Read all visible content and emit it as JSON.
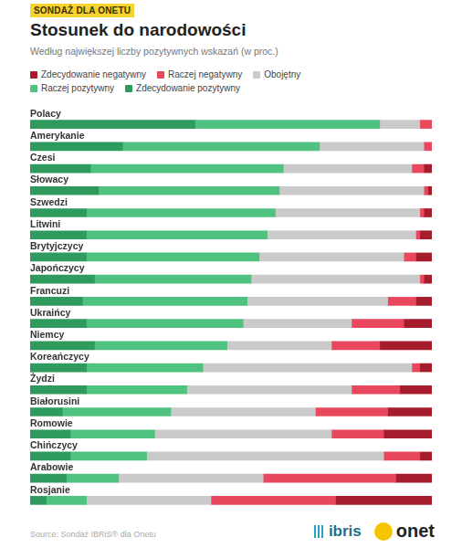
{
  "badge": "SONDAŻ DLA ONETU",
  "source": "Source: Sondaż IBRiS® dla Onetu",
  "logos": [
    "ibris",
    "onet"
  ],
  "chart_data": {
    "type": "bar",
    "title": "Stosunek do narodowości",
    "subtitle": "Według największej liczby pozytywnych wskazań (w proc.)",
    "orientation": "horizontal",
    "stacked": true,
    "grid": false,
    "legend": "top-left",
    "tick_labels": false,
    "data_labels": false,
    "xlim": [
      0,
      100
    ],
    "categories": [
      "Polacy",
      "Amerykanie",
      "Czesi",
      "Słowacy",
      "Szwedzi",
      "Litwini",
      "Brytyjczycy",
      "Japończycy",
      "Francuzi",
      "Ukraińcy",
      "Niemcy",
      "Koreańczycy",
      "Żydzi",
      "Białorusini",
      "Romowie",
      "Chińczycy",
      "Arabowie",
      "Rosjanie"
    ],
    "series": [
      {
        "name": "Zdecydowanie negatywny",
        "color": "#a51d2d",
        "values": [
          0,
          0,
          2,
          1,
          2,
          3,
          4,
          2,
          4,
          7,
          13,
          3,
          8,
          11,
          12,
          3,
          9,
          24
        ]
      },
      {
        "name": "Raczej negatywny",
        "color": "#e8475d",
        "values": [
          3,
          2,
          3,
          1,
          1,
          1,
          3,
          1,
          7,
          13,
          12,
          2,
          12,
          18,
          13,
          9,
          33,
          31
        ]
      },
      {
        "name": "Obojętny",
        "color": "#cacaca",
        "values": [
          10,
          26,
          32,
          36,
          36,
          37,
          36,
          42,
          35,
          27,
          26,
          52,
          41,
          36,
          44,
          59,
          36,
          31
        ]
      },
      {
        "name": "Raczej pozytywny",
        "color": "#4fc27f",
        "values": [
          46,
          49,
          48,
          45,
          47,
          45,
          43,
          39,
          41,
          39,
          33,
          29,
          25,
          27,
          21,
          19,
          13,
          10
        ]
      },
      {
        "name": "Zdecydowanie pozytywny",
        "color": "#2e9a5d",
        "values": [
          41,
          23,
          15,
          17,
          14,
          14,
          14,
          16,
          13,
          14,
          16,
          14,
          14,
          8,
          10,
          10,
          9,
          4
        ]
      }
    ]
  }
}
